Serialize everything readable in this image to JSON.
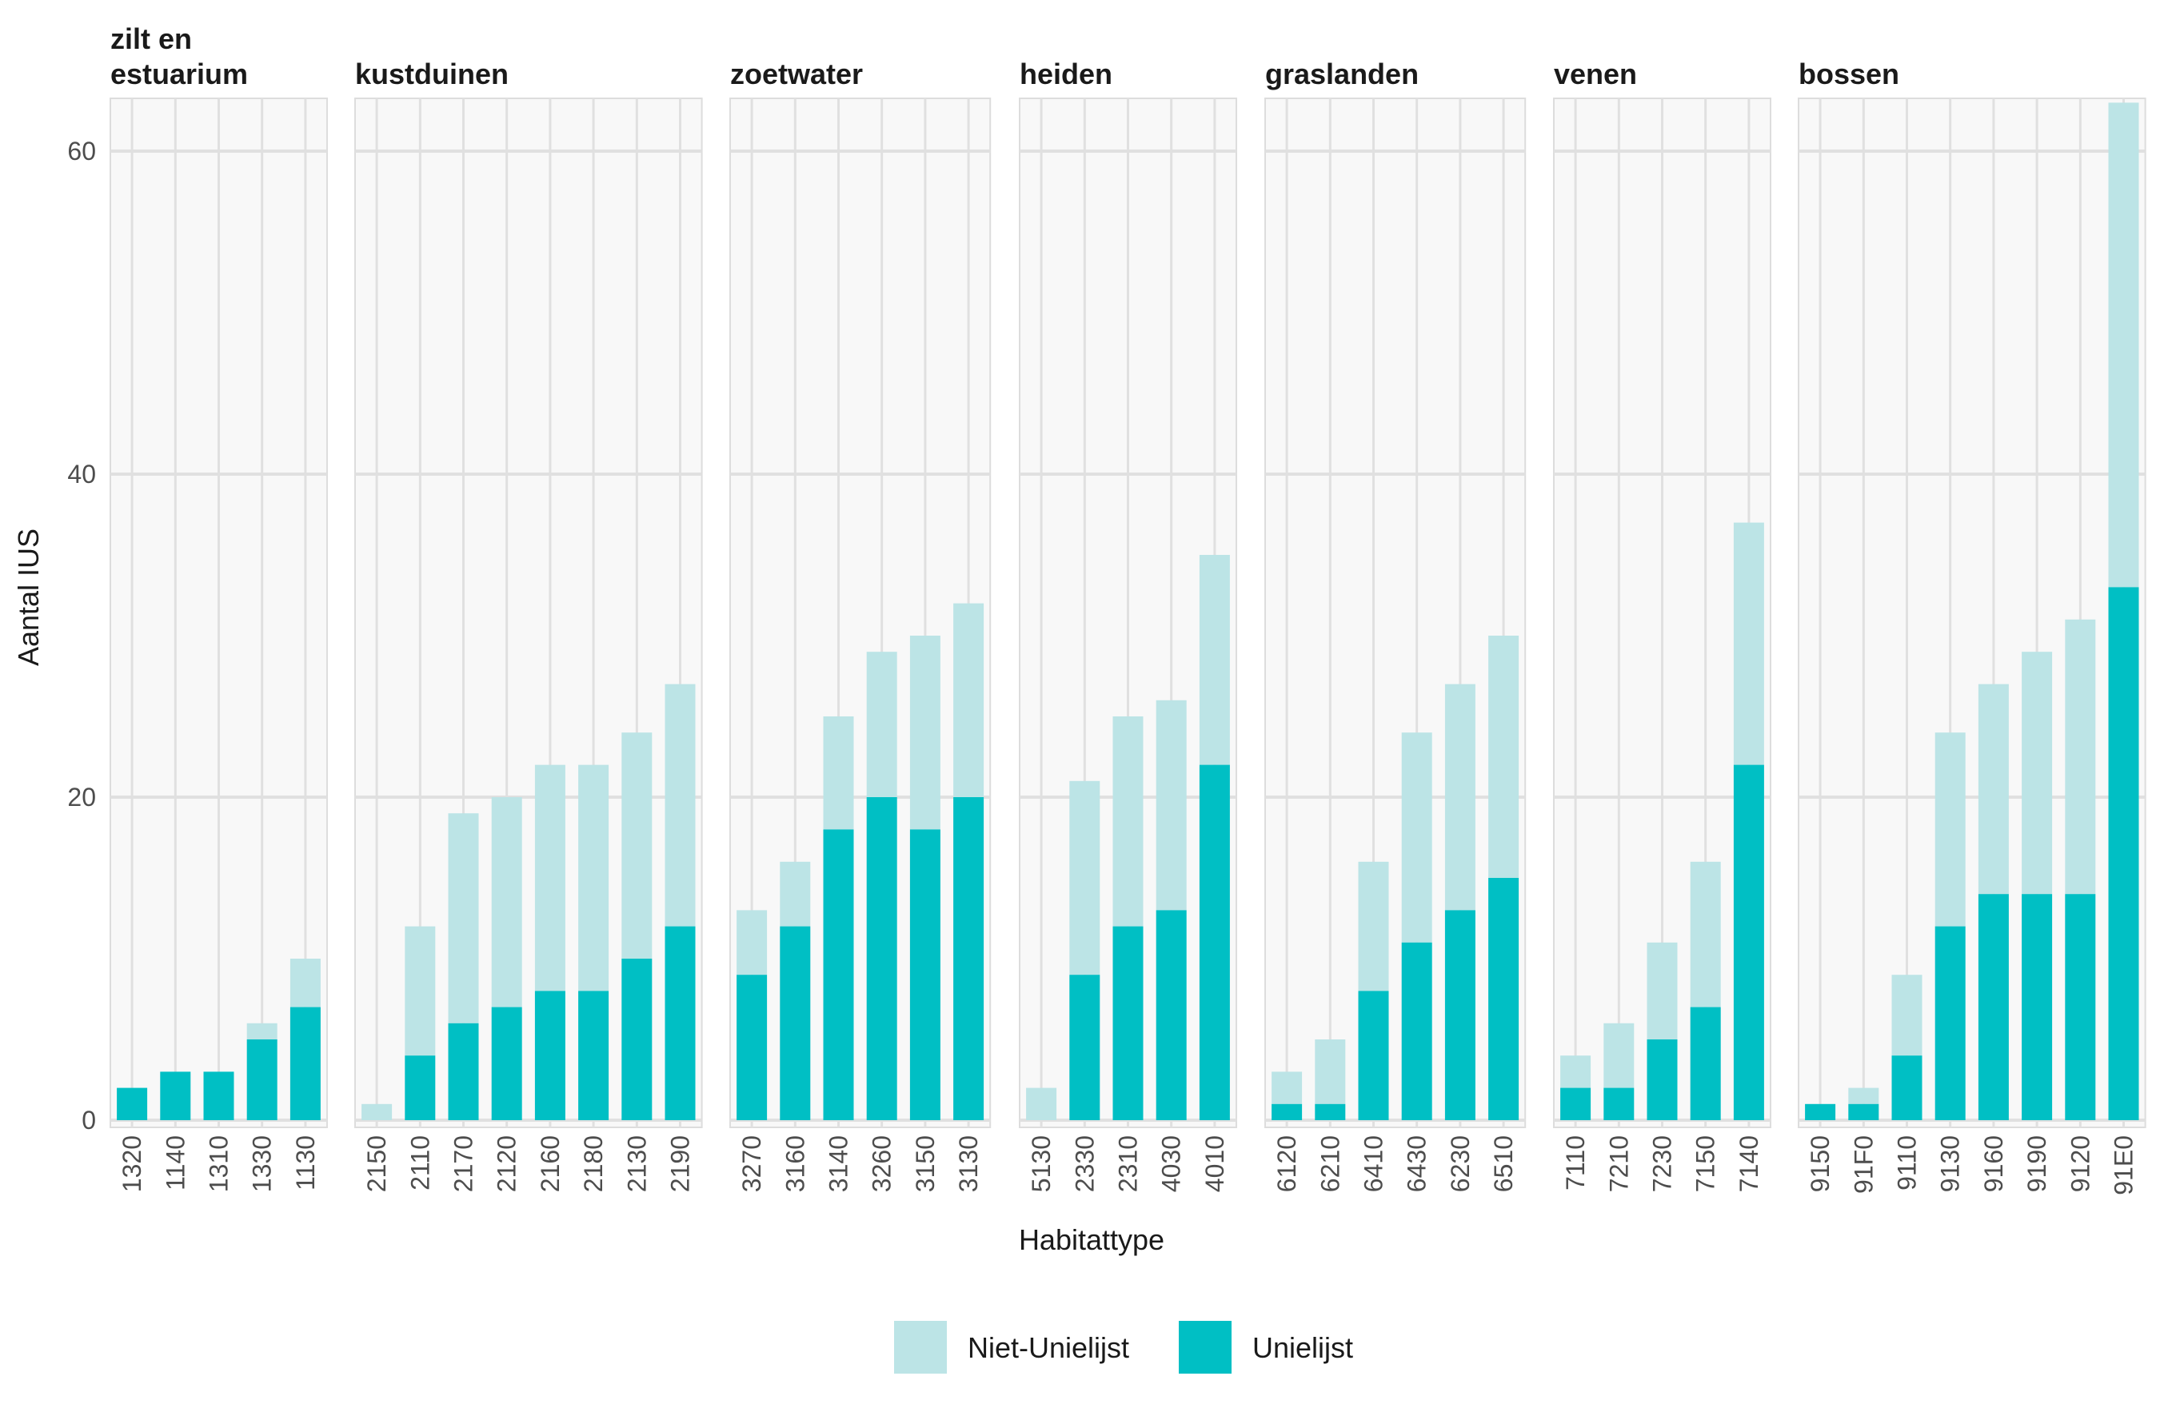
{
  "chart_data": {
    "type": "bar",
    "stacked": true,
    "xlabel": "Habitattype",
    "ylabel": "Aantal IUS",
    "ylim": [
      0,
      63
    ],
    "yticks": [
      0,
      20,
      40,
      60
    ],
    "grid": true,
    "legend_position": "bottom",
    "series": [
      {
        "name": "Niet-Unielijst",
        "color": "#bce4e6"
      },
      {
        "name": "Unielijst",
        "color": "#00bfc4"
      }
    ],
    "facets": [
      {
        "title": [
          "zilt en",
          "estuarium"
        ],
        "categories": [
          "1320",
          "1140",
          "1310",
          "1330",
          "1130"
        ],
        "unielijst": [
          2,
          3,
          3,
          5,
          7
        ],
        "totals": [
          2,
          3,
          3,
          6,
          10
        ]
      },
      {
        "title": [
          "kustduinen"
        ],
        "categories": [
          "2150",
          "2110",
          "2170",
          "2120",
          "2160",
          "2180",
          "2130",
          "2190"
        ],
        "unielijst": [
          0,
          4,
          6,
          7,
          8,
          8,
          10,
          12
        ],
        "totals": [
          1,
          12,
          19,
          20,
          22,
          22,
          24,
          27
        ]
      },
      {
        "title": [
          "zoetwater"
        ],
        "categories": [
          "3270",
          "3160",
          "3140",
          "3260",
          "3150",
          "3130"
        ],
        "unielijst": [
          9,
          12,
          18,
          20,
          18,
          20
        ],
        "totals": [
          13,
          16,
          25,
          29,
          30,
          32
        ]
      },
      {
        "title": [
          "heiden"
        ],
        "categories": [
          "5130",
          "2330",
          "2310",
          "4030",
          "4010"
        ],
        "unielijst": [
          0,
          9,
          12,
          13,
          22
        ],
        "totals": [
          2,
          21,
          25,
          26,
          35
        ]
      },
      {
        "title": [
          "graslanden"
        ],
        "categories": [
          "6120",
          "6210",
          "6410",
          "6430",
          "6230",
          "6510"
        ],
        "unielijst": [
          1,
          1,
          8,
          11,
          13,
          15
        ],
        "totals": [
          3,
          5,
          16,
          24,
          27,
          30
        ]
      },
      {
        "title": [
          "venen"
        ],
        "categories": [
          "7110",
          "7210",
          "7230",
          "7150",
          "7140"
        ],
        "unielijst": [
          2,
          2,
          5,
          7,
          22
        ],
        "totals": [
          4,
          6,
          11,
          16,
          37
        ]
      },
      {
        "title": [
          "bossen"
        ],
        "categories": [
          "9150",
          "91F0",
          "9110",
          "9130",
          "9160",
          "9190",
          "9120",
          "91E0"
        ],
        "unielijst": [
          1,
          1,
          4,
          12,
          14,
          14,
          14,
          33
        ],
        "totals": [
          1,
          2,
          9,
          24,
          27,
          29,
          31,
          63
        ]
      }
    ]
  }
}
